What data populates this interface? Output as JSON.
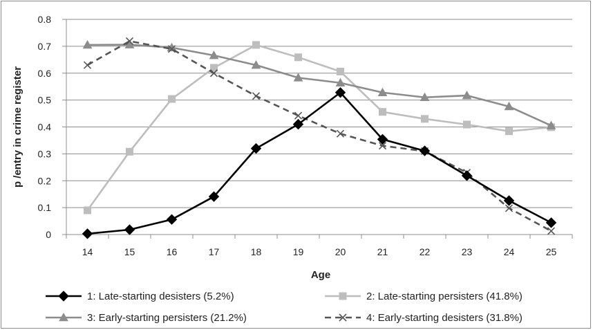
{
  "chart_data": {
    "type": "line",
    "xlabel": "Age",
    "ylabel": "p /entry in crime register",
    "categories": [
      "14",
      "15",
      "16",
      "17",
      "18",
      "19",
      "20",
      "21",
      "22",
      "23",
      "24",
      "25"
    ],
    "ylim": [
      0,
      0.8
    ],
    "yticks": [
      "0",
      "0.1",
      "0.2",
      "0.3",
      "0.4",
      "0.5",
      "0.6",
      "0.7",
      "0.8"
    ],
    "grid": true,
    "legend_position": "bottom",
    "series": [
      {
        "name": "1: Late-starting desisters (5.2%)",
        "color": "#000000",
        "marker": "diamond",
        "dash": false,
        "values": [
          0.003,
          0.018,
          0.056,
          0.141,
          0.32,
          0.41,
          0.528,
          0.354,
          0.311,
          0.219,
          0.126,
          0.044
        ]
      },
      {
        "name": "2: Late-starting persisters (41.8%)",
        "color": "#bdbdbd",
        "marker": "square",
        "dash": false,
        "values": [
          0.09,
          0.308,
          0.504,
          0.62,
          0.705,
          0.659,
          0.606,
          0.456,
          0.43,
          0.409,
          0.384,
          0.399
        ]
      },
      {
        "name": "3: Early-starting persisters (21.2%)",
        "color": "#8c8c8c",
        "marker": "triangle",
        "dash": false,
        "values": [
          0.705,
          0.706,
          0.695,
          0.666,
          0.63,
          0.583,
          0.564,
          0.528,
          0.51,
          0.517,
          0.476,
          0.405
        ]
      },
      {
        "name": "4: Early-starting desisters (31.8%)",
        "color": "#555555",
        "marker": "x",
        "dash": true,
        "values": [
          0.63,
          0.719,
          0.69,
          0.6,
          0.515,
          0.442,
          0.375,
          0.33,
          0.31,
          0.23,
          0.098,
          0.013
        ]
      }
    ]
  }
}
